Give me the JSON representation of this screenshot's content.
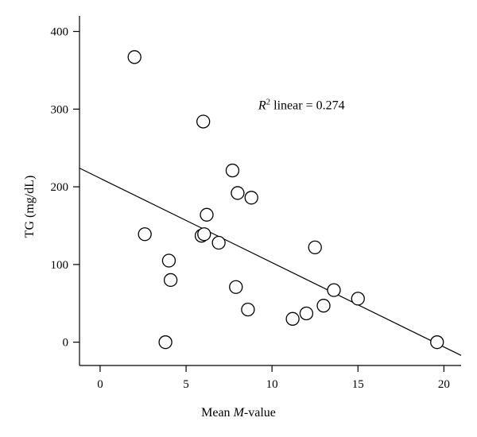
{
  "chart_data": {
    "type": "scatter",
    "xlabel_prefix": "Mean ",
    "xlabel_italic": "M",
    "xlabel_suffix": "-value",
    "ylabel": "TG (mg/dL)",
    "xlim": [
      -1.2,
      21
    ],
    "ylim": [
      -30,
      420
    ],
    "x_ticks": [
      0,
      5,
      10,
      15,
      20
    ],
    "y_ticks": [
      0,
      100,
      200,
      300,
      400
    ],
    "grid": false,
    "annotation": {
      "R": "R",
      "sup": "2",
      "text": " linear = 0.274",
      "x": 9.2,
      "y": 300
    },
    "fit_line": {
      "x": [
        -1.2,
        21
      ],
      "y": [
        224,
        -17
      ]
    },
    "series": [
      {
        "points": [
          {
            "x": 2.0,
            "y": 367
          },
          {
            "x": 2.6,
            "y": 139
          },
          {
            "x": 3.8,
            "y": 0
          },
          {
            "x": 4.0,
            "y": 105
          },
          {
            "x": 4.1,
            "y": 80
          },
          {
            "x": 5.9,
            "y": 137
          },
          {
            "x": 6.0,
            "y": 284
          },
          {
            "x": 6.05,
            "y": 139
          },
          {
            "x": 6.2,
            "y": 164
          },
          {
            "x": 6.9,
            "y": 128
          },
          {
            "x": 7.7,
            "y": 221
          },
          {
            "x": 7.9,
            "y": 71
          },
          {
            "x": 8.0,
            "y": 192
          },
          {
            "x": 8.6,
            "y": 42
          },
          {
            "x": 8.8,
            "y": 186
          },
          {
            "x": 11.2,
            "y": 30
          },
          {
            "x": 12.0,
            "y": 37
          },
          {
            "x": 12.5,
            "y": 122
          },
          {
            "x": 13.0,
            "y": 47
          },
          {
            "x": 13.6,
            "y": 67
          },
          {
            "x": 15.0,
            "y": 56
          },
          {
            "x": 19.6,
            "y": 0
          }
        ]
      }
    ]
  }
}
